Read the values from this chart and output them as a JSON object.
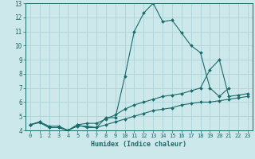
{
  "xlabel": "Humidex (Indice chaleur)",
  "xlim": [
    -0.5,
    23.5
  ],
  "ylim": [
    4,
    13
  ],
  "yticks": [
    4,
    5,
    6,
    7,
    8,
    9,
    10,
    11,
    12,
    13
  ],
  "xticks": [
    0,
    1,
    2,
    3,
    4,
    5,
    6,
    7,
    8,
    9,
    10,
    11,
    12,
    13,
    14,
    15,
    16,
    17,
    18,
    19,
    20,
    21,
    22,
    23
  ],
  "bg_color": "#cce8ea",
  "grid_color": "#add4d8",
  "line_color": "#1a6b6b",
  "lines": [
    {
      "x": [
        0,
        1,
        2,
        3,
        4,
        5,
        6,
        7,
        8,
        9,
        10,
        11,
        12,
        13,
        14,
        15,
        16,
        17,
        18,
        19,
        20,
        21
      ],
      "y": [
        4.4,
        4.6,
        4.2,
        4.2,
        4.0,
        4.4,
        4.2,
        4.2,
        4.9,
        4.9,
        7.8,
        11.0,
        12.3,
        13.0,
        11.7,
        11.8,
        10.9,
        10.0,
        9.5,
        7.0,
        6.4,
        7.0
      ]
    },
    {
      "x": [
        0,
        1,
        2,
        3,
        4,
        5,
        6,
        7,
        8,
        9,
        10,
        11,
        12,
        13,
        14,
        15,
        16,
        17,
        18,
        19,
        20,
        21,
        22,
        23
      ],
      "y": [
        4.4,
        4.6,
        4.3,
        4.3,
        4.0,
        4.4,
        4.5,
        4.5,
        4.8,
        5.1,
        5.5,
        5.8,
        6.0,
        6.2,
        6.4,
        6.5,
        6.6,
        6.8,
        7.0,
        8.3,
        9.0,
        6.4,
        6.5,
        6.6
      ]
    },
    {
      "x": [
        0,
        1,
        2,
        3,
        4,
        5,
        6,
        7,
        8,
        9,
        10,
        11,
        12,
        13,
        14,
        15,
        16,
        17,
        18,
        19,
        20,
        21,
        22,
        23
      ],
      "y": [
        4.4,
        4.55,
        4.2,
        4.2,
        4.0,
        4.3,
        4.3,
        4.2,
        4.4,
        4.6,
        4.8,
        5.0,
        5.2,
        5.4,
        5.5,
        5.6,
        5.8,
        5.9,
        6.0,
        6.0,
        6.1,
        6.2,
        6.3,
        6.4
      ]
    }
  ]
}
